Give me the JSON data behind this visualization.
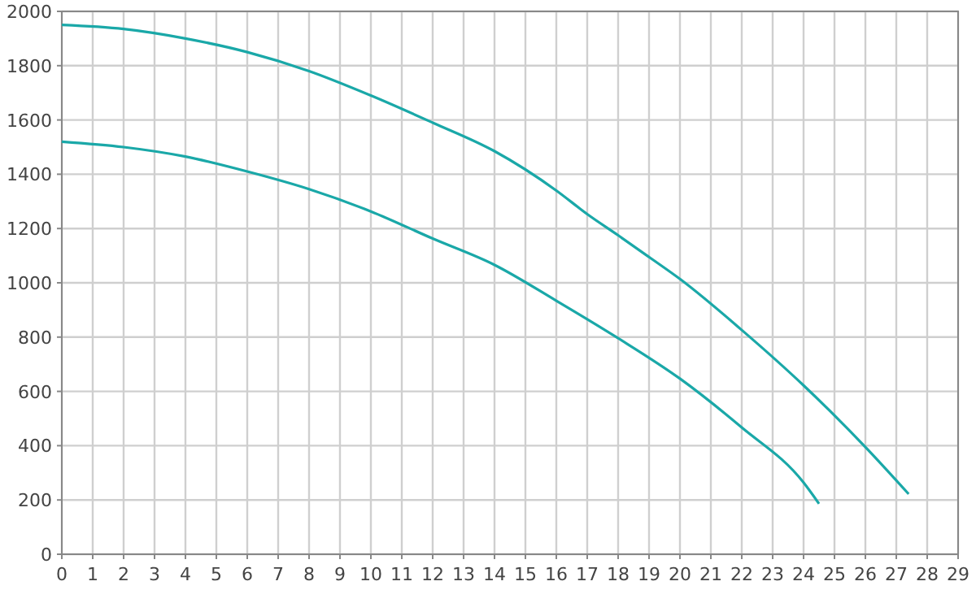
{
  "chart_data": {
    "type": "line",
    "xlim": [
      0,
      29
    ],
    "ylim": [
      0,
      2000
    ],
    "xticks": [
      0,
      1,
      2,
      3,
      4,
      5,
      6,
      7,
      8,
      9,
      10,
      11,
      12,
      13,
      14,
      15,
      16,
      17,
      18,
      19,
      20,
      21,
      22,
      23,
      24,
      25,
      26,
      27,
      28,
      29
    ],
    "yticks": [
      0,
      200,
      400,
      600,
      800,
      1000,
      1200,
      1400,
      1600,
      1800,
      2000
    ],
    "grid": true,
    "marker": "none",
    "line_style": "solid",
    "series": [
      {
        "color": "#1aa8a8",
        "x": [
          0,
          2,
          4,
          6,
          8,
          10,
          12,
          14,
          16,
          17,
          18,
          19,
          20,
          22,
          24,
          26,
          27.4
        ],
        "values": [
          1950,
          1935,
          1900,
          1850,
          1780,
          1690,
          1590,
          1485,
          1340,
          1253,
          1175,
          1095,
          1014,
          826,
          622,
          395,
          222
        ]
      },
      {
        "color": "#1aa8a8",
        "x": [
          0,
          2,
          4,
          6,
          8,
          10,
          12,
          14,
          16,
          18,
          20,
          22,
          24,
          24.5
        ],
        "values": [
          1520,
          1500,
          1465,
          1410,
          1345,
          1263,
          1163,
          1066,
          934,
          796,
          647,
          467,
          264,
          186
        ]
      }
    ]
  }
}
